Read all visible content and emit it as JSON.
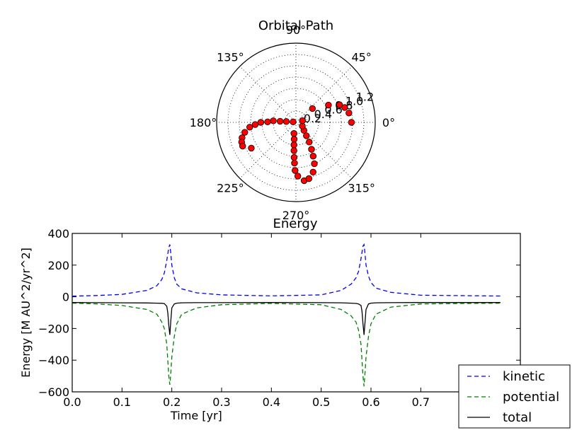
{
  "chart_data": [
    {
      "type": "scatter",
      "projection": "polar",
      "title": "Orbital Path",
      "angle_tick_labels": [
        "0°",
        "45°",
        "90°",
        "135°",
        "180°",
        "225°",
        "270°",
        "315°"
      ],
      "radial_tick_labels": [
        "0.2",
        "0.4",
        "0.6",
        "0.8",
        "1.0",
        "1.2"
      ],
      "rlim": [
        0,
        1.4
      ],
      "grid": true,
      "marker_color": "#ff0000",
      "points": [
        {
          "theta": 0,
          "r": 0.98
        },
        {
          "theta": 10,
          "r": 0.95
        },
        {
          "theta": 17,
          "r": 0.9
        },
        {
          "theta": 22,
          "r": 0.83
        },
        {
          "theta": 28,
          "r": 0.65
        },
        {
          "theta": 40,
          "r": 0.38
        },
        {
          "theta": 170,
          "r": 0.05
        },
        {
          "theta": 175,
          "r": 0.17
        },
        {
          "theta": 176,
          "r": 0.28
        },
        {
          "theta": 176,
          "r": 0.4
        },
        {
          "theta": 179,
          "r": 0.5
        },
        {
          "theta": 180,
          "r": 0.62
        },
        {
          "theta": 183,
          "r": 0.72
        },
        {
          "theta": 186,
          "r": 0.82
        },
        {
          "theta": 191,
          "r": 0.92
        },
        {
          "theta": 196,
          "r": 0.99
        },
        {
          "theta": 200,
          "r": 1.02
        },
        {
          "theta": 204,
          "r": 1.03
        },
        {
          "theta": 210,
          "r": 0.91
        },
        {
          "theta": 260,
          "r": 0.2
        },
        {
          "theta": 264,
          "r": 0.3
        },
        {
          "theta": 265,
          "r": 0.4
        },
        {
          "theta": 266,
          "r": 0.5
        },
        {
          "theta": 267,
          "r": 0.62
        },
        {
          "theta": 268,
          "r": 0.72
        },
        {
          "theta": 269,
          "r": 0.85
        },
        {
          "theta": 272,
          "r": 0.95
        },
        {
          "theta": 278,
          "r": 1.04
        },
        {
          "theta": 283,
          "r": 1.02
        },
        {
          "theta": 289,
          "r": 0.93
        },
        {
          "theta": 294,
          "r": 0.8
        },
        {
          "theta": 297,
          "r": 0.67
        },
        {
          "theta": 300,
          "r": 0.55
        },
        {
          "theta": 304,
          "r": 0.42
        },
        {
          "theta": 308,
          "r": 0.3
        },
        {
          "theta": 315,
          "r": 0.2
        },
        {
          "theta": 330,
          "r": 0.13
        },
        {
          "theta": 15,
          "r": 0.12
        }
      ]
    },
    {
      "type": "line",
      "title": "Energy",
      "xlabel": "Time [yr]",
      "ylabel": "Energy  [M AU^2/yr^2]",
      "xlim": [
        0.0,
        0.9
      ],
      "ylim": [
        -600,
        400
      ],
      "x_tick_labels": [
        "0.0",
        "0.1",
        "0.2",
        "0.3",
        "0.4",
        "0.5",
        "0.6",
        "0.7"
      ],
      "y_tick_labels": [
        "400",
        "200",
        "0",
        "−200",
        "−400",
        "−600"
      ],
      "legend_position": "bottom-right",
      "x": [
        0.0,
        0.05,
        0.1,
        0.15,
        0.17,
        0.18,
        0.185,
        0.19,
        0.192,
        0.194,
        0.196,
        0.198,
        0.2,
        0.205,
        0.21,
        0.22,
        0.25,
        0.3,
        0.4,
        0.5,
        0.54,
        0.56,
        0.57,
        0.575,
        0.58,
        0.582,
        0.584,
        0.586,
        0.588,
        0.59,
        0.595,
        0.6,
        0.61,
        0.64,
        0.7,
        0.86
      ],
      "series": [
        {
          "name": "kinetic",
          "color": "#0000ff",
          "style": "dashed",
          "values": [
            4,
            8,
            15,
            40,
            70,
            110,
            150,
            230,
            270,
            310,
            330,
            270,
            200,
            120,
            80,
            50,
            25,
            12,
            6,
            12,
            40,
            80,
            120,
            160,
            240,
            280,
            320,
            330,
            270,
            200,
            130,
            90,
            55,
            28,
            10,
            5
          ]
        },
        {
          "name": "potential",
          "color": "#008000",
          "style": "dashed",
          "values": [
            -40,
            -45,
            -55,
            -80,
            -110,
            -160,
            -200,
            -300,
            -400,
            -500,
            -555,
            -480,
            -380,
            -250,
            -170,
            -110,
            -70,
            -50,
            -42,
            -50,
            -80,
            -120,
            -160,
            -210,
            -300,
            -400,
            -500,
            -565,
            -480,
            -380,
            -250,
            -170,
            -110,
            -65,
            -45,
            -40
          ]
        },
        {
          "name": "total",
          "color": "#000000",
          "style": "solid",
          "values": [
            -36,
            -37,
            -38,
            -39,
            -40,
            -41,
            -43,
            -60,
            -100,
            -180,
            -240,
            -150,
            -70,
            -45,
            -40,
            -38,
            -37,
            -37,
            -36,
            -37,
            -38,
            -40,
            -42,
            -45,
            -55,
            -90,
            -170,
            -240,
            -160,
            -80,
            -45,
            -40,
            -38,
            -37,
            -36,
            -36
          ]
        }
      ]
    }
  ]
}
